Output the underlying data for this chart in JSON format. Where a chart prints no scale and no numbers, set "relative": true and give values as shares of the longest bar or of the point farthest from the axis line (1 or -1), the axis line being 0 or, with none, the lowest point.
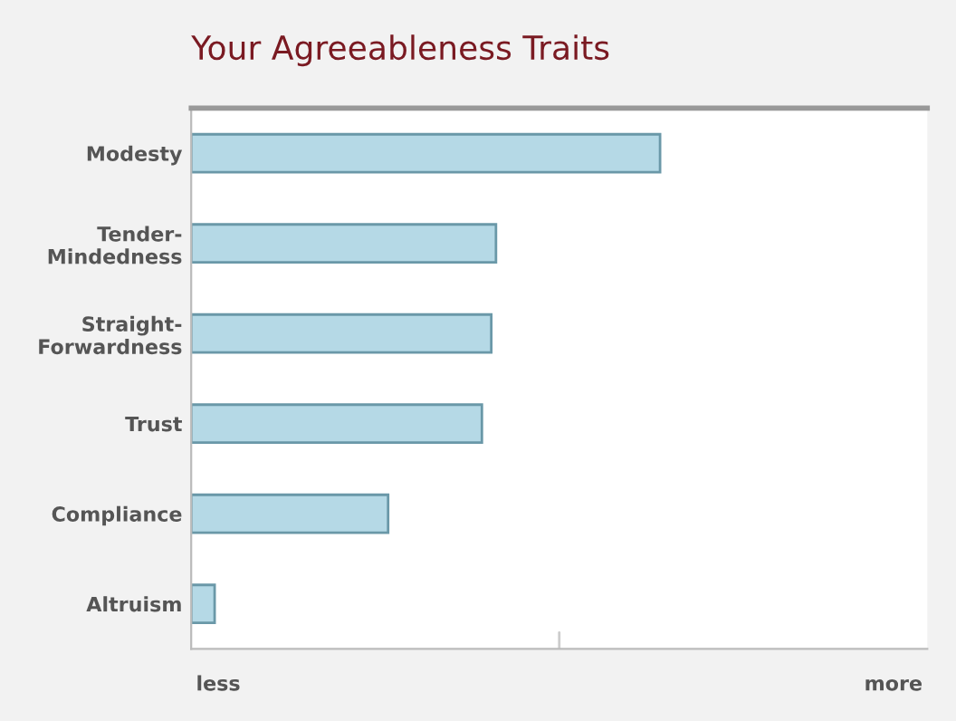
{
  "chart_data": {
    "type": "bar",
    "orientation": "horizontal",
    "relative": true,
    "title": "Your Agreeableness Traits",
    "categories": [
      "Modesty",
      "Tender-\nMindedness",
      "Straight-\nForwardness",
      "Trust",
      "Compliance",
      "Altruism"
    ],
    "values": [
      1,
      0.65,
      0.64,
      0.62,
      0.42,
      0.05
    ],
    "color": "#b5d9e6",
    "annotations": [
      "less",
      "more"
    ],
    "grid": false,
    "legend": false
  }
}
